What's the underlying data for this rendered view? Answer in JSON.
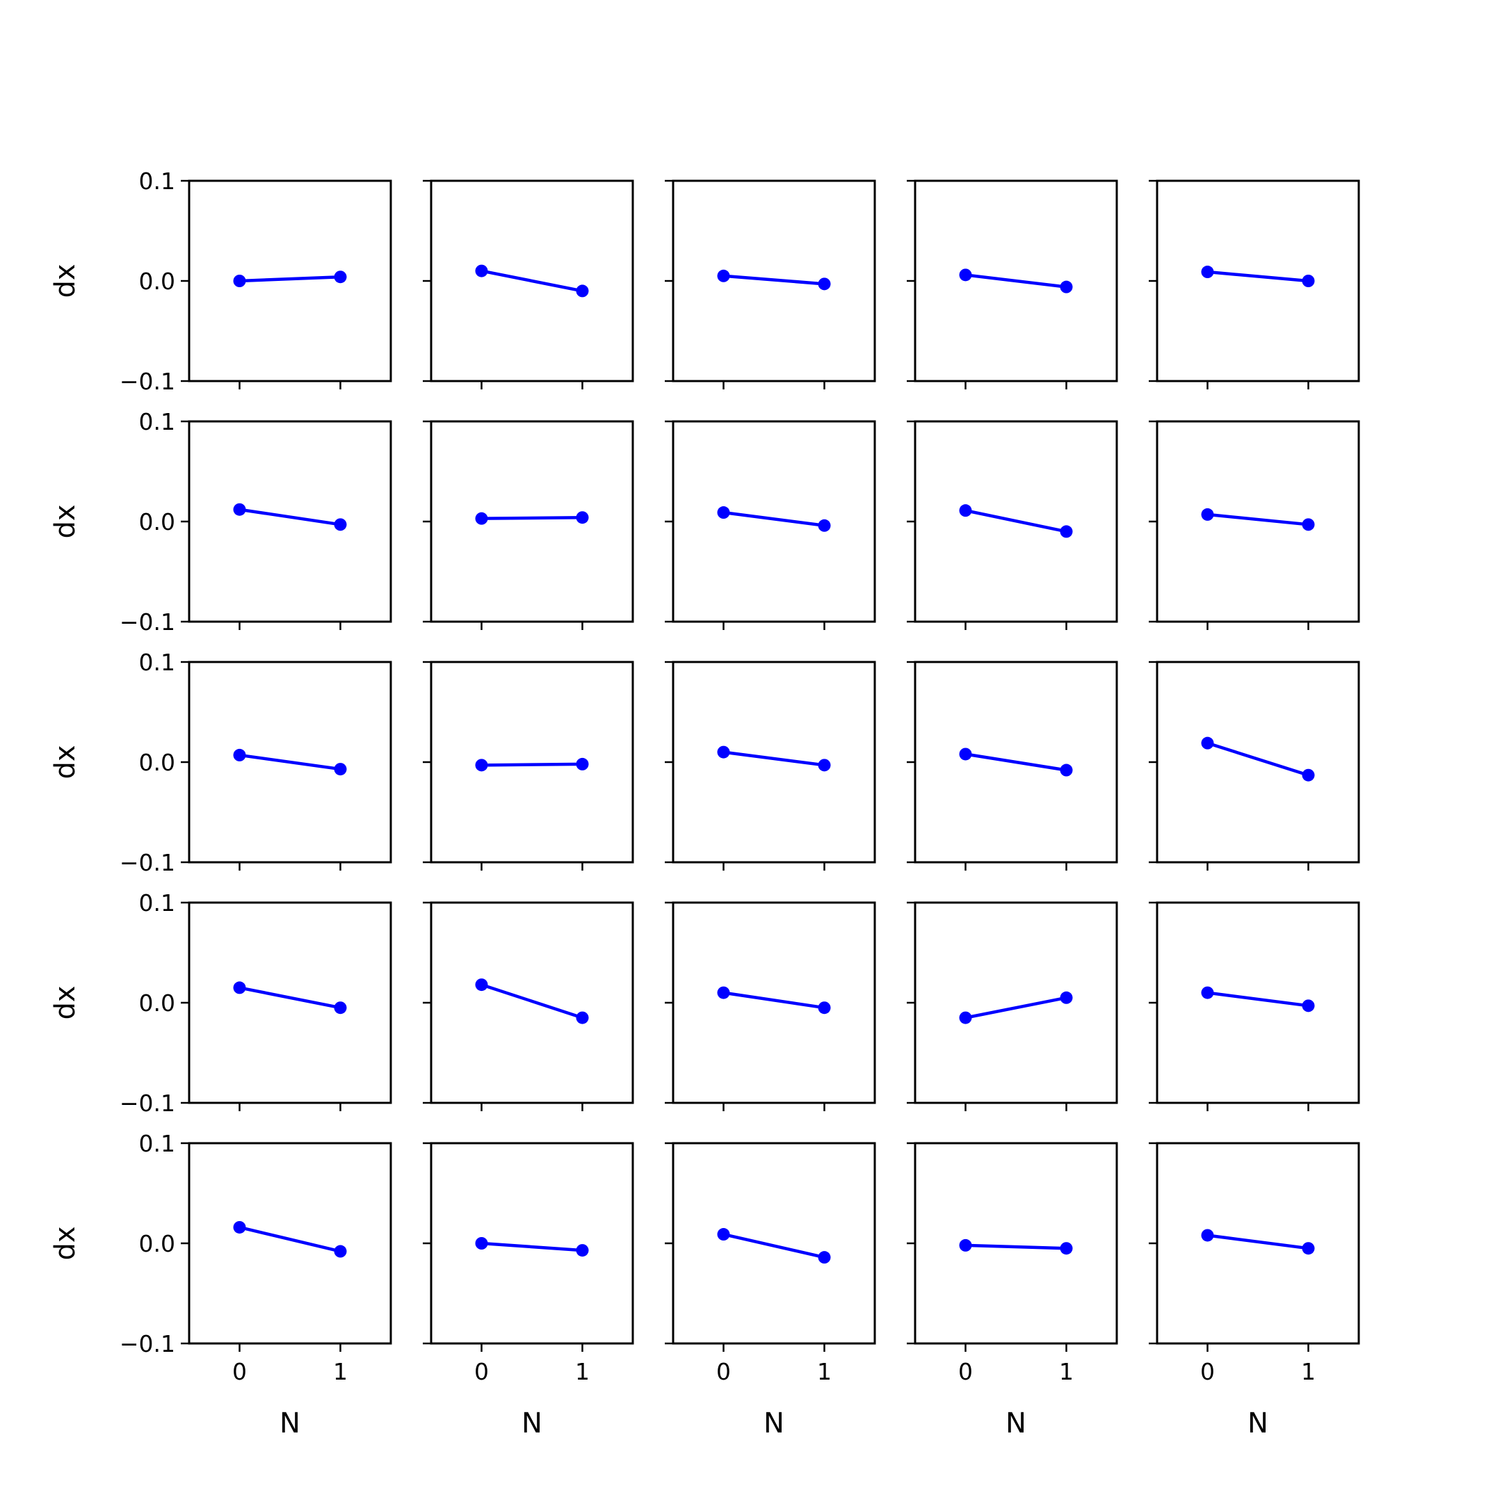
{
  "chart_data": {
    "type": "line",
    "layout": "grid 5x5",
    "shared_axes": true,
    "x_ticks": [
      0,
      1
    ],
    "x_tick_labels": [
      "0",
      "1"
    ],
    "y_ticks": [
      -0.1,
      0.0,
      0.1
    ],
    "y_tick_labels": [
      "−0.1",
      "0.0",
      "0.1"
    ],
    "xlabel": "N",
    "ylabel": "dx",
    "xlim": [
      -0.5,
      1.5
    ],
    "ylim": [
      -0.1,
      0.1
    ],
    "grid": false,
    "legend": "none",
    "line_color": "#0000ff",
    "marker": "circle",
    "panels": [
      {
        "x": [
          0,
          1
        ],
        "y": [
          0.0,
          0.004
        ]
      },
      {
        "x": [
          0,
          1
        ],
        "y": [
          0.01,
          -0.01
        ]
      },
      {
        "x": [
          0,
          1
        ],
        "y": [
          0.005,
          -0.003
        ]
      },
      {
        "x": [
          0,
          1
        ],
        "y": [
          0.006,
          -0.006
        ]
      },
      {
        "x": [
          0,
          1
        ],
        "y": [
          0.009,
          0.0
        ]
      },
      {
        "x": [
          0,
          1
        ],
        "y": [
          0.012,
          -0.003
        ]
      },
      {
        "x": [
          0,
          1
        ],
        "y": [
          0.003,
          0.004
        ]
      },
      {
        "x": [
          0,
          1
        ],
        "y": [
          0.009,
          -0.004
        ]
      },
      {
        "x": [
          0,
          1
        ],
        "y": [
          0.011,
          -0.01
        ]
      },
      {
        "x": [
          0,
          1
        ],
        "y": [
          0.007,
          -0.003
        ]
      },
      {
        "x": [
          0,
          1
        ],
        "y": [
          0.007,
          -0.007
        ]
      },
      {
        "x": [
          0,
          1
        ],
        "y": [
          -0.003,
          -0.002
        ]
      },
      {
        "x": [
          0,
          1
        ],
        "y": [
          0.01,
          -0.003
        ]
      },
      {
        "x": [
          0,
          1
        ],
        "y": [
          0.008,
          -0.008
        ]
      },
      {
        "x": [
          0,
          1
        ],
        "y": [
          0.019,
          -0.013
        ]
      },
      {
        "x": [
          0,
          1
        ],
        "y": [
          0.015,
          -0.005
        ]
      },
      {
        "x": [
          0,
          1
        ],
        "y": [
          0.018,
          -0.015
        ]
      },
      {
        "x": [
          0,
          1
        ],
        "y": [
          0.01,
          -0.005
        ]
      },
      {
        "x": [
          0,
          1
        ],
        "y": [
          -0.015,
          0.005
        ]
      },
      {
        "x": [
          0,
          1
        ],
        "y": [
          0.01,
          -0.003
        ]
      },
      {
        "x": [
          0,
          1
        ],
        "y": [
          0.016,
          -0.008
        ]
      },
      {
        "x": [
          0,
          1
        ],
        "y": [
          0.0,
          -0.007
        ]
      },
      {
        "x": [
          0,
          1
        ],
        "y": [
          0.009,
          -0.014
        ]
      },
      {
        "x": [
          0,
          1
        ],
        "y": [
          -0.002,
          -0.005
        ]
      },
      {
        "x": [
          0,
          1
        ],
        "y": [
          0.008,
          -0.005
        ]
      }
    ]
  }
}
